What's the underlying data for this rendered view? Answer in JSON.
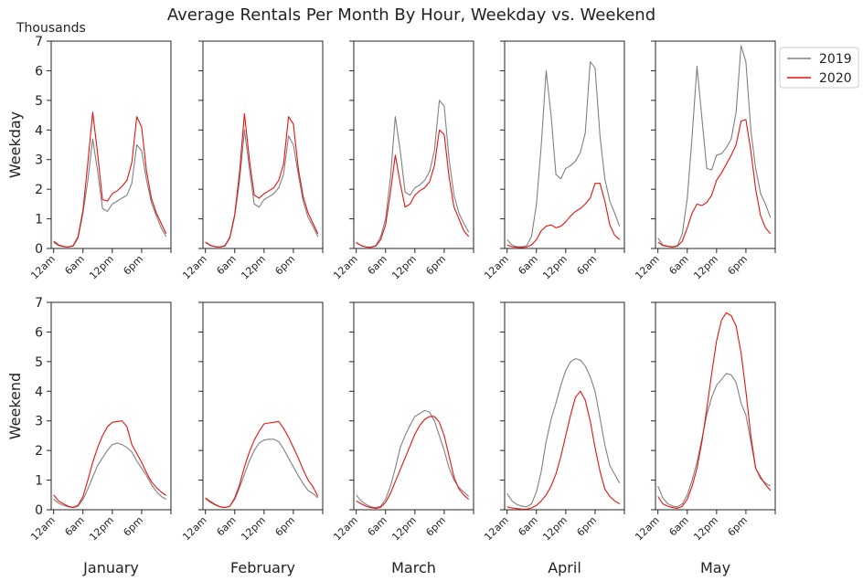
{
  "chart_data": {
    "type": "line",
    "title": "Average Rentals Per Month By Hour, Weekday vs. Weekend",
    "y_unit_label": "Thousands",
    "row_labels": [
      "Weekday",
      "Weekend"
    ],
    "column_labels": [
      "January",
      "February",
      "March",
      "April",
      "May"
    ],
    "ylim": [
      0,
      7
    ],
    "y_ticks": [
      "0",
      "1",
      "2",
      "3",
      "4",
      "5",
      "6",
      "7"
    ],
    "x_ticks": [
      {
        "hour": 0,
        "label": "12am"
      },
      {
        "hour": 6,
        "label": "6am"
      },
      {
        "hour": 12,
        "label": "12pm"
      },
      {
        "hour": 18,
        "label": "6pm"
      }
    ],
    "x_range": [
      -0.5,
      24
    ],
    "legend": {
      "placement": "right",
      "entries": [
        {
          "name": "2019",
          "color": "#808080"
        },
        {
          "name": "2020",
          "color": "#e8120c"
        }
      ]
    },
    "hours": [
      0,
      1,
      2,
      3,
      4,
      5,
      6,
      7,
      8,
      9,
      10,
      11,
      12,
      13,
      14,
      15,
      16,
      17,
      18,
      19,
      20,
      21,
      22,
      23
    ],
    "panels": [
      {
        "row": "Weekday",
        "month": "January",
        "series": [
          {
            "name": "2019",
            "values": [
              0.2,
              0.1,
              0.06,
              0.05,
              0.08,
              0.35,
              1.2,
              2.3,
              3.7,
              2.6,
              1.35,
              1.25,
              1.5,
              1.6,
              1.7,
              1.8,
              2.2,
              3.5,
              3.3,
              2.3,
              1.55,
              1.1,
              0.7,
              0.4
            ]
          },
          {
            "name": "2020",
            "values": [
              0.25,
              0.12,
              0.07,
              0.05,
              0.1,
              0.4,
              1.3,
              2.9,
              4.6,
              3.2,
              1.65,
              1.6,
              1.85,
              1.95,
              2.1,
              2.3,
              2.9,
              4.45,
              4.1,
              2.6,
              1.7,
              1.2,
              0.85,
              0.5
            ]
          }
        ]
      },
      {
        "row": "Weekday",
        "month": "February",
        "series": [
          {
            "name": "2019",
            "values": [
              0.2,
              0.1,
              0.06,
              0.05,
              0.08,
              0.35,
              1.1,
              2.3,
              4.0,
              2.7,
              1.5,
              1.4,
              1.65,
              1.75,
              1.85,
              2.05,
              2.5,
              3.8,
              3.5,
              2.5,
              1.6,
              1.05,
              0.75,
              0.4
            ]
          },
          {
            "name": "2020",
            "values": [
              0.22,
              0.11,
              0.06,
              0.05,
              0.1,
              0.38,
              1.15,
              2.6,
              4.55,
              3.0,
              1.8,
              1.7,
              1.85,
              1.95,
              2.05,
              2.3,
              2.85,
              4.45,
              4.2,
              2.7,
              1.75,
              1.2,
              0.85,
              0.5
            ]
          }
        ]
      },
      {
        "row": "Weekday",
        "month": "March",
        "series": [
          {
            "name": "2019",
            "values": [
              0.2,
              0.1,
              0.05,
              0.05,
              0.1,
              0.4,
              1.0,
              2.4,
              4.45,
              3.3,
              1.9,
              1.8,
              2.05,
              2.15,
              2.3,
              2.6,
              3.3,
              5.0,
              4.8,
              3.0,
              1.8,
              1.2,
              0.85,
              0.55
            ]
          },
          {
            "name": "2020",
            "values": [
              0.2,
              0.1,
              0.05,
              0.04,
              0.08,
              0.3,
              0.8,
              1.9,
              3.15,
              2.2,
              1.4,
              1.5,
              1.8,
              1.95,
              2.05,
              2.25,
              2.8,
              4.0,
              3.85,
              2.4,
              1.4,
              1.0,
              0.6,
              0.4
            ]
          }
        ]
      },
      {
        "row": "Weekday",
        "month": "April",
        "series": [
          {
            "name": "2019",
            "values": [
              0.3,
              0.12,
              0.06,
              0.06,
              0.1,
              0.4,
              1.5,
              3.5,
              6.0,
              4.5,
              2.5,
              2.35,
              2.7,
              2.8,
              2.95,
              3.25,
              3.9,
              6.3,
              6.1,
              3.8,
              2.35,
              1.6,
              1.2,
              0.75
            ]
          },
          {
            "name": "2020",
            "values": [
              0.12,
              0.06,
              0.04,
              0.03,
              0.05,
              0.12,
              0.3,
              0.6,
              0.75,
              0.8,
              0.7,
              0.75,
              0.9,
              1.1,
              1.25,
              1.35,
              1.5,
              1.7,
              2.2,
              2.2,
              1.6,
              0.8,
              0.45,
              0.3
            ]
          }
        ]
      },
      {
        "row": "Weekday",
        "month": "May",
        "series": [
          {
            "name": "2019",
            "values": [
              0.35,
              0.12,
              0.08,
              0.06,
              0.1,
              0.5,
              1.7,
              3.8,
              6.15,
              4.4,
              2.7,
              2.65,
              3.15,
              3.2,
              3.4,
              3.7,
              4.6,
              6.85,
              6.3,
              4.0,
              2.7,
              1.85,
              1.5,
              1.05
            ]
          },
          {
            "name": "2020",
            "values": [
              0.22,
              0.1,
              0.07,
              0.05,
              0.08,
              0.25,
              0.7,
              1.2,
              1.5,
              1.45,
              1.55,
              1.8,
              2.3,
              2.55,
              2.85,
              3.15,
              3.5,
              4.3,
              4.35,
              3.3,
              2.0,
              1.1,
              0.7,
              0.5
            ]
          }
        ]
      },
      {
        "row": "Weekend",
        "month": "January",
        "series": [
          {
            "name": "2019",
            "values": [
              0.35,
              0.22,
              0.15,
              0.1,
              0.07,
              0.12,
              0.35,
              0.7,
              1.1,
              1.5,
              1.75,
              2.0,
              2.2,
              2.25,
              2.2,
              2.1,
              1.95,
              1.65,
              1.4,
              1.15,
              0.85,
              0.62,
              0.45,
              0.35
            ]
          },
          {
            "name": "2020",
            "values": [
              0.5,
              0.3,
              0.2,
              0.12,
              0.08,
              0.15,
              0.45,
              1.0,
              1.6,
              2.1,
              2.5,
              2.8,
              2.95,
              2.98,
              3.0,
              2.8,
              2.2,
              1.9,
              1.6,
              1.25,
              0.95,
              0.75,
              0.6,
              0.48
            ]
          }
        ]
      },
      {
        "row": "Weekend",
        "month": "February",
        "series": [
          {
            "name": "2019",
            "values": [
              0.38,
              0.25,
              0.16,
              0.1,
              0.07,
              0.12,
              0.35,
              0.75,
              1.2,
              1.65,
              2.0,
              2.25,
              2.35,
              2.38,
              2.38,
              2.3,
              2.05,
              1.75,
              1.45,
              1.15,
              0.88,
              0.65,
              0.55,
              0.4
            ]
          },
          {
            "name": "2020",
            "values": [
              0.4,
              0.28,
              0.18,
              0.1,
              0.08,
              0.12,
              0.4,
              0.85,
              1.45,
              1.95,
              2.35,
              2.65,
              2.9,
              2.93,
              2.95,
              2.98,
              2.75,
              2.45,
              2.1,
              1.75,
              1.35,
              1.0,
              0.78,
              0.45
            ]
          }
        ]
      },
      {
        "row": "Weekend",
        "month": "March",
        "series": [
          {
            "name": "2019",
            "values": [
              0.5,
              0.3,
              0.18,
              0.1,
              0.07,
              0.12,
              0.35,
              0.8,
              1.4,
              2.1,
              2.5,
              2.85,
              3.15,
              3.25,
              3.35,
              3.3,
              3.0,
              2.5,
              2.0,
              1.4,
              1.0,
              0.75,
              0.6,
              0.45
            ]
          },
          {
            "name": "2020",
            "values": [
              0.3,
              0.2,
              0.12,
              0.07,
              0.05,
              0.08,
              0.25,
              0.55,
              0.95,
              1.35,
              1.75,
              2.15,
              2.55,
              2.85,
              3.05,
              3.15,
              3.15,
              2.95,
              2.5,
              1.8,
              1.1,
              0.7,
              0.5,
              0.35
            ]
          }
        ]
      },
      {
        "row": "Weekend",
        "month": "April",
        "series": [
          {
            "name": "2019",
            "values": [
              0.55,
              0.3,
              0.18,
              0.12,
              0.1,
              0.2,
              0.6,
              1.3,
              2.3,
              3.05,
              3.6,
              4.2,
              4.7,
              5.0,
              5.1,
              5.05,
              4.85,
              4.5,
              4.0,
              3.1,
              2.2,
              1.5,
              1.2,
              0.9
            ]
          },
          {
            "name": "2020",
            "values": [
              0.1,
              0.06,
              0.04,
              0.02,
              0.02,
              0.06,
              0.15,
              0.3,
              0.5,
              0.8,
              1.2,
              1.8,
              2.5,
              3.2,
              3.8,
              4.0,
              3.7,
              3.0,
              2.1,
              1.3,
              0.7,
              0.45,
              0.3,
              0.2
            ]
          }
        ]
      },
      {
        "row": "Weekend",
        "month": "May",
        "series": [
          {
            "name": "2019",
            "values": [
              0.8,
              0.4,
              0.2,
              0.12,
              0.1,
              0.2,
              0.5,
              1.0,
              1.6,
              2.4,
              3.2,
              3.8,
              4.2,
              4.4,
              4.6,
              4.55,
              4.3,
              3.6,
              3.2,
              2.3,
              1.4,
              1.05,
              0.9,
              0.8
            ]
          },
          {
            "name": "2020",
            "values": [
              0.45,
              0.2,
              0.12,
              0.07,
              0.05,
              0.12,
              0.35,
              0.8,
              1.4,
              2.3,
              3.4,
              4.6,
              5.7,
              6.4,
              6.65,
              6.55,
              6.2,
              5.3,
              4.0,
              2.5,
              1.4,
              1.1,
              0.85,
              0.65
            ]
          }
        ]
      }
    ]
  }
}
